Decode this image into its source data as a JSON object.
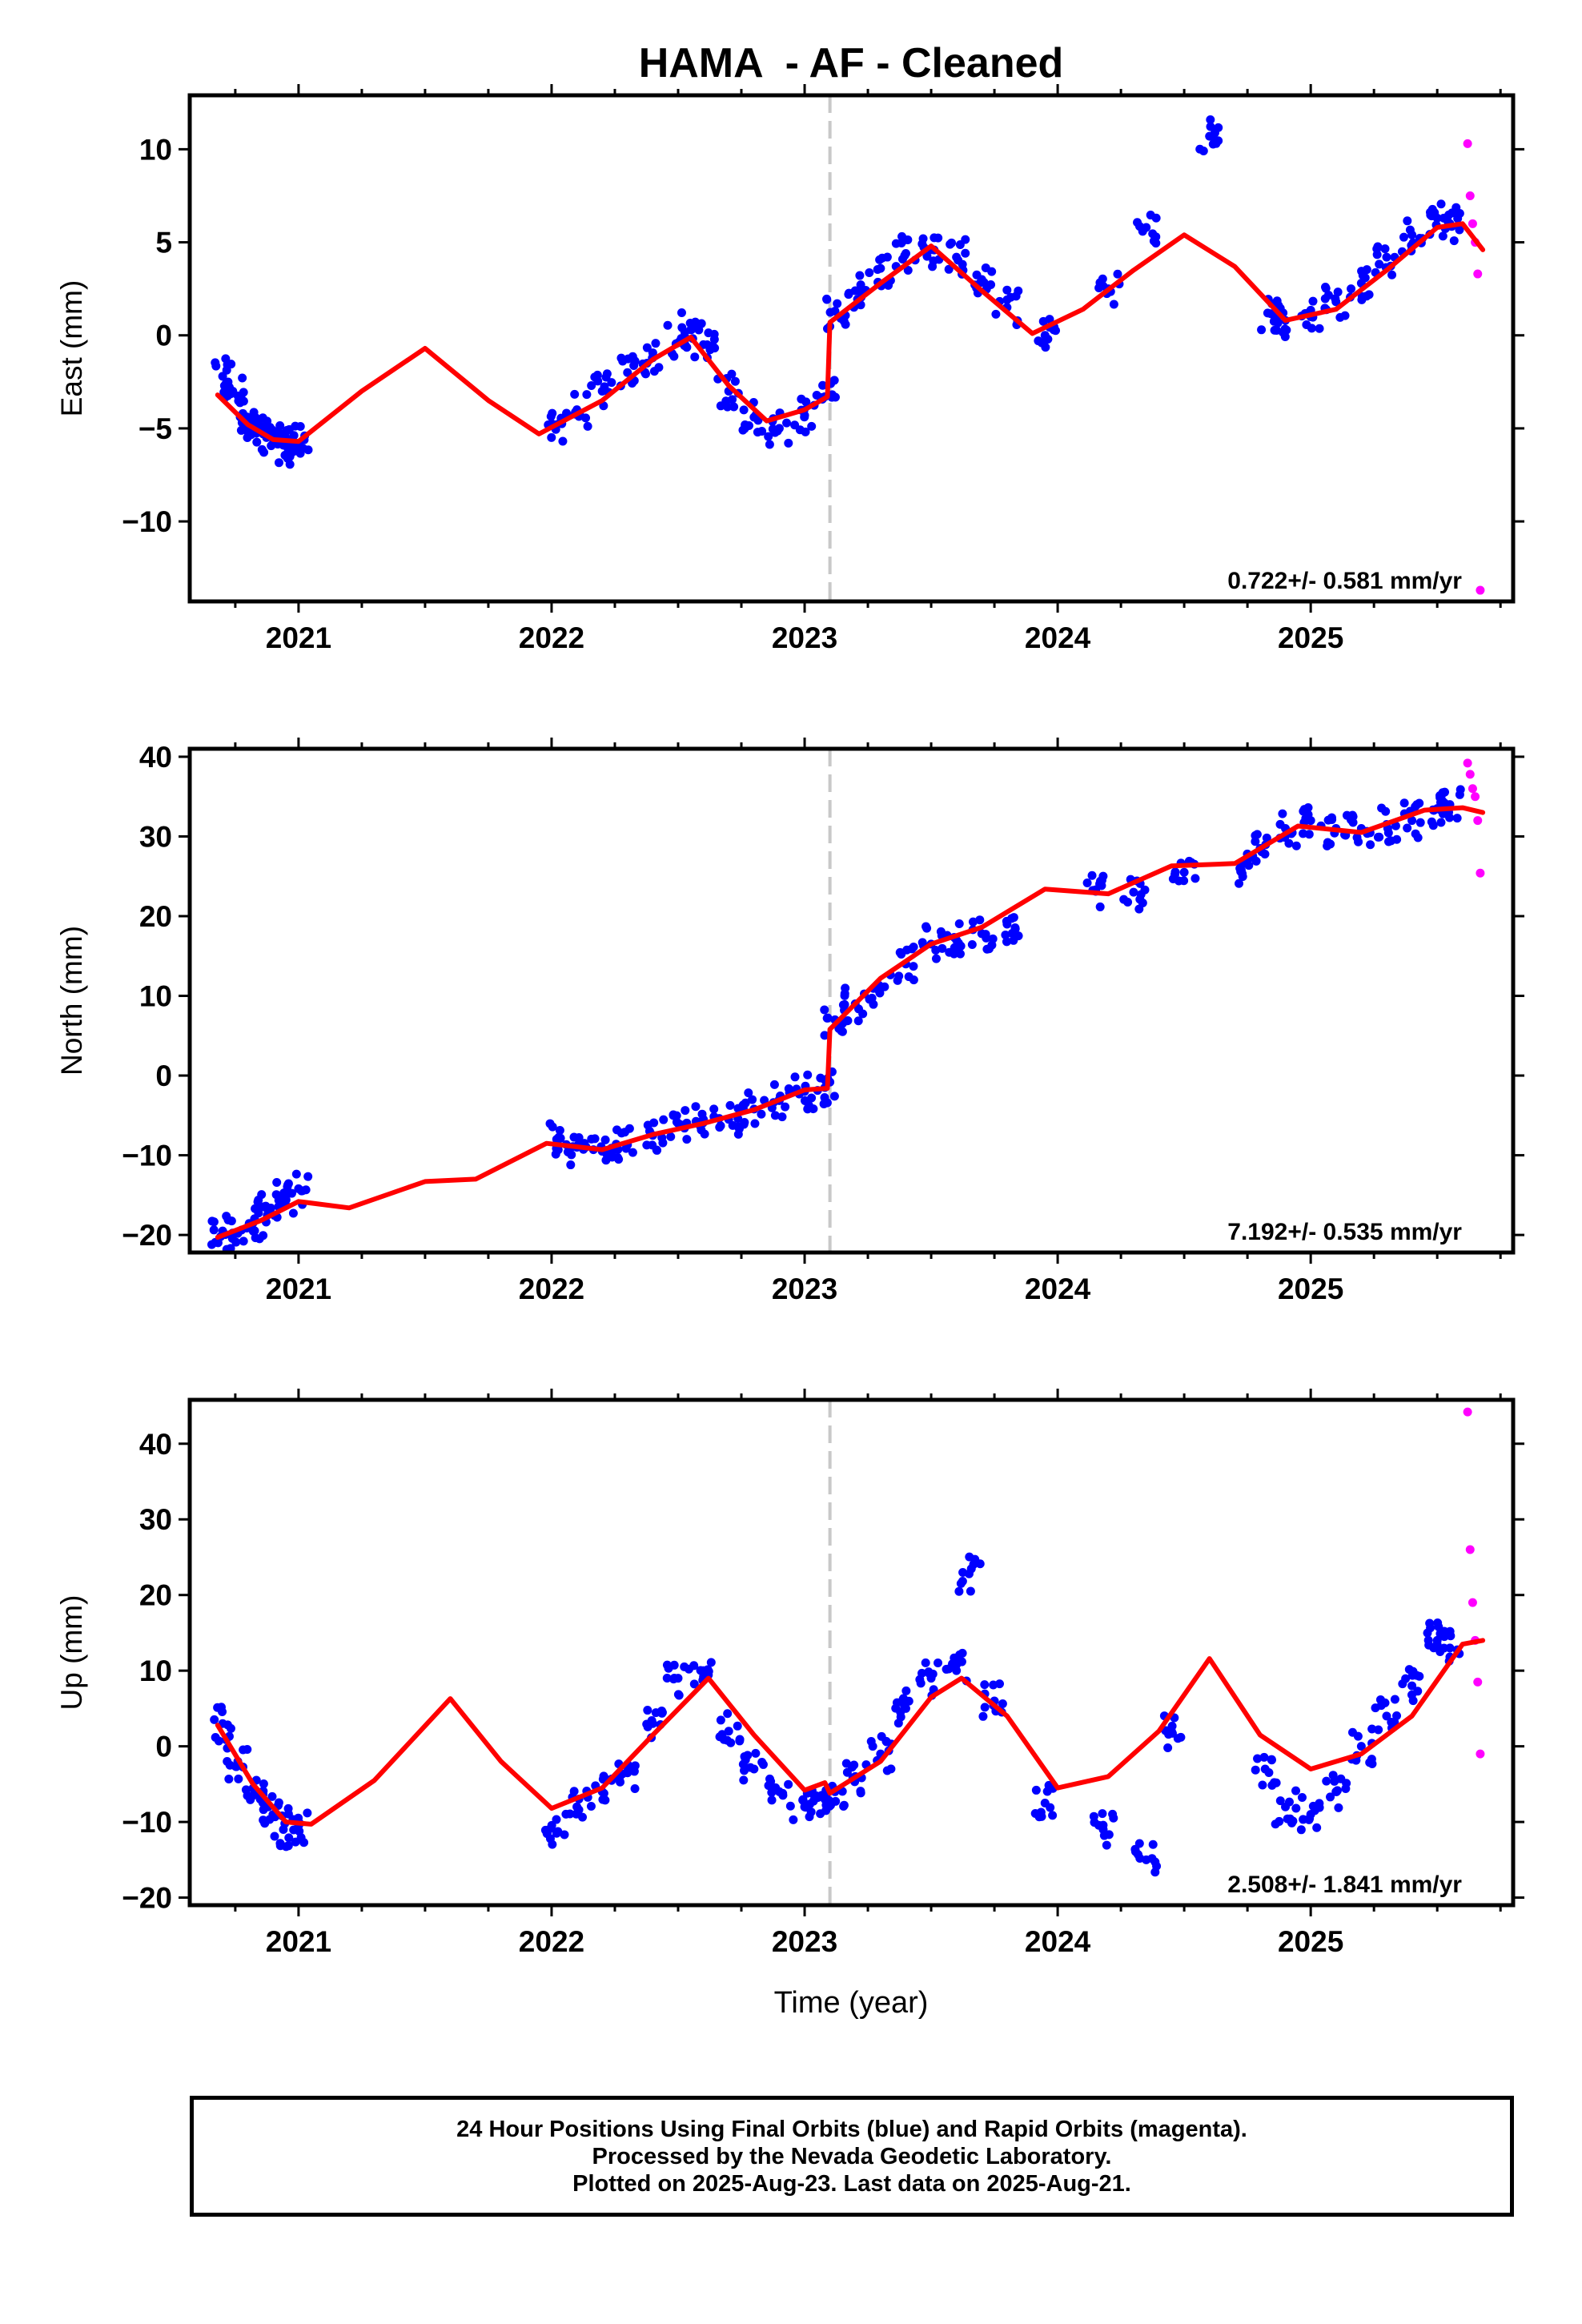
{
  "title": "HAMA  - AF - Cleaned",
  "xlabel": "Time (year)",
  "footer": {
    "line1": "24 Hour Positions Using Final Orbits (blue) and Rapid Orbits (magenta).",
    "line2": "Processed by the Nevada Geodetic Laboratory.",
    "line3": "Plotted on 2025-Aug-23. Last data on 2025-Aug-21."
  },
  "colors": {
    "final_orbits": "#0000ff",
    "rapid_orbits": "#ff00ff",
    "model": "#ff0000",
    "event_line": "#c8c8c8"
  },
  "chart_data": [
    {
      "type": "scatter",
      "component": "east",
      "ylabel": "East (mm)",
      "xlim": [
        2020.57,
        2025.8
      ],
      "ylim": [
        -14.3,
        12.9
      ],
      "yticks": [
        -10,
        -5,
        0,
        5,
        10
      ],
      "xticks": [
        2021,
        2022,
        2023,
        2024,
        2025
      ],
      "event_line_x": 2023.1,
      "velocity_label": "0.722+/- 0.581 mm/yr",
      "series": [
        {
          "name": "Final Orbits",
          "color": "#0000ff",
          "x": [
            2020.7,
            2020.74,
            2020.78,
            2020.82,
            2020.86,
            2020.9,
            2020.94,
            2020.98,
            2021.0,
            2022.02,
            2022.1,
            2022.2,
            2022.3,
            2022.4,
            2022.5,
            2022.55,
            2022.6,
            2022.7,
            2022.8,
            2022.9,
            2023.0,
            2023.08,
            2023.12,
            2023.2,
            2023.3,
            2023.4,
            2023.5,
            2023.6,
            2023.7,
            2023.8,
            2023.95,
            2024.2,
            2024.35,
            2024.6,
            2024.83,
            2024.9,
            2025.0,
            2025.1,
            2025.2,
            2025.3,
            2025.4,
            2025.5,
            2025.55
          ],
          "values": [
            -2.2,
            -3.0,
            -4.2,
            -4.8,
            -5.3,
            -5.8,
            -5.9,
            -6.0,
            -5.8,
            -4.8,
            -4.0,
            -3.0,
            -2.0,
            -1.2,
            -0.4,
            0.3,
            -0.5,
            -3.0,
            -4.4,
            -5.0,
            -4.3,
            -3.3,
            1.3,
            2.4,
            3.6,
            4.4,
            4.6,
            4.2,
            3.0,
            1.5,
            0.0,
            2.5,
            5.8,
            10.7,
            1.2,
            0.8,
            1.0,
            1.8,
            2.8,
            4.2,
            5.4,
            6.3,
            6.0
          ]
        },
        {
          "name": "Rapid Orbits",
          "color": "#ff00ff",
          "x": [
            2025.62,
            2025.63,
            2025.64,
            2025.65,
            2025.66,
            2025.67
          ],
          "values": [
            10.3,
            7.5,
            6.0,
            5.0,
            3.3,
            -13.7
          ]
        }
      ],
      "model": {
        "color": "#ff0000",
        "x": [
          2020.68,
          2020.8,
          2020.9,
          2021.0,
          2021.25,
          2021.5,
          2021.75,
          2021.95,
          2022.2,
          2022.4,
          2022.55,
          2022.7,
          2022.85,
          2023.0,
          2023.09,
          2023.1,
          2023.3,
          2023.5,
          2023.7,
          2023.9,
          2024.1,
          2024.3,
          2024.5,
          2024.7,
          2024.9,
          2025.1,
          2025.3,
          2025.5,
          2025.6,
          2025.68
        ],
        "values": [
          -3.2,
          -4.8,
          -5.6,
          -5.7,
          -3.0,
          -0.7,
          -3.5,
          -5.3,
          -3.5,
          -1.3,
          -0.1,
          -2.7,
          -4.6,
          -4.0,
          -3.3,
          0.7,
          2.8,
          4.8,
          2.4,
          0.1,
          1.4,
          3.5,
          5.4,
          3.7,
          0.8,
          1.4,
          3.5,
          5.8,
          6.0,
          4.6
        ]
      }
    },
    {
      "type": "scatter",
      "component": "north",
      "ylabel": "North (mm)",
      "xlim": [
        2020.57,
        2025.8
      ],
      "ylim": [
        -22.2,
        41.0
      ],
      "yticks": [
        -20,
        -10,
        0,
        10,
        20,
        30,
        40
      ],
      "xticks": [
        2021,
        2022,
        2023,
        2024,
        2025
      ],
      "event_line_x": 2023.1,
      "velocity_label": "7.192+/- 0.535 mm/yr",
      "series": [
        {
          "name": "Final Orbits",
          "color": "#0000ff",
          "x": [
            2020.7,
            2020.76,
            2020.82,
            2020.88,
            2020.94,
            2021.0,
            2022.02,
            2022.1,
            2022.2,
            2022.3,
            2022.4,
            2022.5,
            2022.6,
            2022.7,
            2022.8,
            2022.9,
            2023.0,
            2023.08,
            2023.12,
            2023.2,
            2023.3,
            2023.4,
            2023.5,
            2023.6,
            2023.7,
            2023.8,
            2024.15,
            2024.3,
            2024.5,
            2024.72,
            2024.8,
            2024.9,
            2025.0,
            2025.1,
            2025.2,
            2025.3,
            2025.4,
            2025.5,
            2025.55
          ],
          "values": [
            -19.5,
            -19.8,
            -18.5,
            -17.0,
            -15.5,
            -14.2,
            -8.0,
            -9.0,
            -9.5,
            -8.7,
            -7.5,
            -6.0,
            -5.5,
            -5.5,
            -4.2,
            -3.0,
            -2.0,
            -1.5,
            7.0,
            9.0,
            11.0,
            14.0,
            16.5,
            17.0,
            17.8,
            19.0,
            23.3,
            23.0,
            25.5,
            26.0,
            28.5,
            31.0,
            32.0,
            31.0,
            31.0,
            31.5,
            32.0,
            33.5,
            34.0
          ]
        },
        {
          "name": "Rapid Orbits",
          "color": "#ff00ff",
          "x": [
            2025.62,
            2025.63,
            2025.64,
            2025.65,
            2025.66,
            2025.67
          ],
          "values": [
            39.2,
            37.8,
            36.0,
            35.0,
            32.0,
            25.4
          ]
        }
      ],
      "model": {
        "color": "#ff0000",
        "x": [
          2020.68,
          2020.85,
          2021.0,
          2021.2,
          2021.5,
          2021.7,
          2021.98,
          2022.2,
          2022.4,
          2022.6,
          2022.8,
          2023.0,
          2023.09,
          2023.1,
          2023.3,
          2023.5,
          2023.7,
          2023.95,
          2024.2,
          2024.45,
          2024.7,
          2024.95,
          2025.2,
          2025.45,
          2025.6,
          2025.68
        ],
        "values": [
          -20.3,
          -18.2,
          -15.8,
          -16.6,
          -13.3,
          -13.0,
          -8.5,
          -9.3,
          -7.4,
          -6.0,
          -4.3,
          -1.8,
          -1.6,
          5.8,
          12.2,
          16.5,
          18.6,
          23.4,
          22.8,
          26.3,
          26.6,
          31.3,
          30.5,
          33.3,
          33.6,
          33.0
        ]
      }
    },
    {
      "type": "scatter",
      "component": "up",
      "ylabel": "Up (mm)",
      "xlim": [
        2020.57,
        2025.8
      ],
      "ylim": [
        -21.0,
        45.8
      ],
      "yticks": [
        -20,
        -10,
        0,
        10,
        20,
        30,
        40
      ],
      "xticks": [
        2021,
        2022,
        2023,
        2024,
        2025
      ],
      "event_line_x": 2023.1,
      "velocity_label": "2.508+/- 1.841 mm/yr",
      "series": [
        {
          "name": "Final Orbits",
          "color": "#0000ff",
          "x": [
            2020.7,
            2020.76,
            2020.82,
            2020.88,
            2020.94,
            2021.0,
            2022.02,
            2022.1,
            2022.2,
            2022.3,
            2022.4,
            2022.5,
            2022.6,
            2022.7,
            2022.8,
            2022.9,
            2023.0,
            2023.08,
            2023.12,
            2023.2,
            2023.3,
            2023.4,
            2023.5,
            2023.6,
            2023.65,
            2023.75,
            2023.95,
            2024.18,
            2024.35,
            2024.45,
            2024.82,
            2024.9,
            2025.0,
            2025.1,
            2025.2,
            2025.3,
            2025.4,
            2025.5,
            2025.55
          ],
          "values": [
            3.0,
            -2.0,
            -6.5,
            -8.0,
            -11.0,
            -10.5,
            -11.5,
            -8.0,
            -6.0,
            -3.5,
            3.0,
            9.0,
            10.0,
            2.0,
            -3.0,
            -6.0,
            -8.0,
            -7.0,
            -6.0,
            -4.0,
            -1.0,
            5.0,
            9.0,
            10.0,
            22.8,
            6.0,
            -7.5,
            -11.0,
            -15.0,
            2.0,
            -3.0,
            -8.0,
            -9.0,
            -6.0,
            0.0,
            4.0,
            8.0,
            14.0,
            13.0
          ]
        },
        {
          "name": "Rapid Orbits",
          "color": "#ff00ff",
          "x": [
            2025.62,
            2025.63,
            2025.64,
            2025.65,
            2025.66,
            2025.67
          ],
          "values": [
            44.2,
            26.0,
            19.0,
            14.0,
            8.5,
            -1.0
          ]
        }
      ],
      "model": {
        "color": "#ff0000",
        "x": [
          2020.68,
          2020.82,
          2020.95,
          2021.05,
          2021.3,
          2021.6,
          2021.8,
          2022.0,
          2022.2,
          2022.4,
          2022.62,
          2022.8,
          2023.0,
          2023.08,
          2023.1,
          2023.3,
          2023.5,
          2023.62,
          2023.8,
          2024.0,
          2024.2,
          2024.4,
          2024.6,
          2024.8,
          2025.0,
          2025.2,
          2025.4,
          2025.6,
          2025.68
        ],
        "values": [
          2.8,
          -5.0,
          -10.0,
          -10.3,
          -4.5,
          6.3,
          -2.0,
          -8.2,
          -5.5,
          1.5,
          9.0,
          1.5,
          -5.8,
          -4.8,
          -6.2,
          -2.0,
          6.5,
          9.0,
          4.0,
          -5.5,
          -4.0,
          2.0,
          11.6,
          1.5,
          -3.0,
          -1.0,
          4.0,
          13.5,
          14.0
        ]
      }
    }
  ]
}
